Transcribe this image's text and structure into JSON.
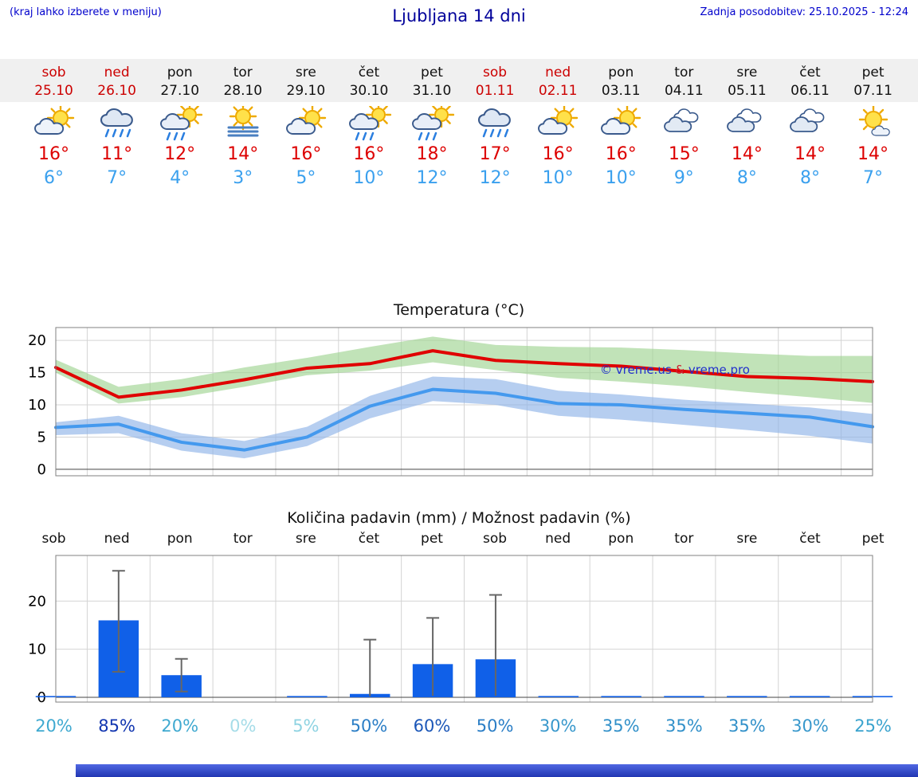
{
  "header": {
    "note_left": "(kraj lahko izberete v meniju)",
    "title": "Ljubljana 14 dni",
    "updated": "Zadnja posodobitev: 25.10.2025 - 12:24"
  },
  "colors": {
    "weekend_red": "#cc0000",
    "tmax_red": "#dd0000",
    "tmin_blue": "#3aa0ee",
    "link_blue": "#0000cc",
    "title_blue": "#00009a",
    "strip_bg": "#f0f0f0",
    "line_red": "#e00000",
    "line_blue": "#4499ee",
    "band_green": "#9fd492",
    "band_blue": "#8fb3e8",
    "bar_blue": "#1060e8",
    "footer_bar": "#3050d0"
  },
  "days": [
    {
      "name": "sob",
      "date": "25.10",
      "weekend": true,
      "icon": "sun-cloud-icon",
      "tmax": "16°",
      "tmin": "6°"
    },
    {
      "name": "ned",
      "date": "26.10",
      "weekend": true,
      "icon": "rain-icon",
      "tmax": "11°",
      "tmin": "7°"
    },
    {
      "name": "pon",
      "date": "27.10",
      "weekend": false,
      "icon": "sun-rain-icon",
      "tmax": "12°",
      "tmin": "4°"
    },
    {
      "name": "tor",
      "date": "28.10",
      "weekend": false,
      "icon": "fog-sun-icon",
      "tmax": "14°",
      "tmin": "3°"
    },
    {
      "name": "sre",
      "date": "29.10",
      "weekend": false,
      "icon": "sun-cloud-icon",
      "tmax": "16°",
      "tmin": "5°"
    },
    {
      "name": "čet",
      "date": "30.10",
      "weekend": false,
      "icon": "sun-rain-icon",
      "tmax": "16°",
      "tmin": "10°"
    },
    {
      "name": "pet",
      "date": "31.10",
      "weekend": false,
      "icon": "sun-rain-icon",
      "tmax": "18°",
      "tmin": "12°"
    },
    {
      "name": "sob",
      "date": "01.11",
      "weekend": true,
      "icon": "rain-icon",
      "tmax": "17°",
      "tmin": "12°"
    },
    {
      "name": "ned",
      "date": "02.11",
      "weekend": true,
      "icon": "sun-cloud-icon",
      "tmax": "16°",
      "tmin": "10°"
    },
    {
      "name": "pon",
      "date": "03.11",
      "weekend": false,
      "icon": "sun-cloud-icon",
      "tmax": "16°",
      "tmin": "10°"
    },
    {
      "name": "tor",
      "date": "04.11",
      "weekend": false,
      "icon": "cloudy-icon",
      "tmax": "15°",
      "tmin": "9°"
    },
    {
      "name": "sre",
      "date": "05.11",
      "weekend": false,
      "icon": "cloudy-icon",
      "tmax": "14°",
      "tmin": "8°"
    },
    {
      "name": "čet",
      "date": "06.11",
      "weekend": false,
      "icon": "cloudy-icon",
      "tmax": "14°",
      "tmin": "8°"
    },
    {
      "name": "pet",
      "date": "07.11",
      "weekend": false,
      "icon": "mostly-sunny-icon",
      "tmax": "14°",
      "tmin": "7°"
    }
  ],
  "chart_data": [
    {
      "type": "line",
      "title": "Temperatura (°C)",
      "watermark": {
        "pre": "© vreme.us ",
        "amp": "&",
        "post": " vreme.pro"
      },
      "x_labels": [
        "sob 25.10",
        "ned 26.10",
        "pon 27.10",
        "tor 28.10",
        "sre 29.10",
        "čet 30.10",
        "pet 31.10",
        "sob 01.11",
        "ned 02.11",
        "pon 03.11",
        "tor 04.11",
        "sre 05.11",
        "čet 06.11",
        "pet 07.11"
      ],
      "series": [
        {
          "name": "tmax",
          "values": [
            15.8,
            11.2,
            12.3,
            13.9,
            15.7,
            16.4,
            18.4,
            16.9,
            16.4,
            16.0,
            15.2,
            14.4,
            14.1,
            13.6
          ]
        },
        {
          "name": "tmax_upper",
          "values": [
            17.0,
            12.8,
            14.0,
            15.8,
            17.3,
            19.0,
            20.6,
            19.3,
            19.0,
            18.9,
            18.5,
            18.0,
            17.6,
            17.6
          ]
        },
        {
          "name": "tmax_lower",
          "values": [
            15.0,
            10.2,
            11.2,
            12.8,
            14.6,
            15.3,
            16.6,
            15.4,
            14.2,
            13.6,
            12.9,
            12.0,
            11.2,
            10.3
          ]
        },
        {
          "name": "tmin",
          "values": [
            6.5,
            7.0,
            4.2,
            3.0,
            5.0,
            9.8,
            12.4,
            11.8,
            10.2,
            10.0,
            9.3,
            8.7,
            8.1,
            6.6
          ]
        },
        {
          "name": "tmin_upper",
          "values": [
            7.3,
            8.3,
            5.6,
            4.4,
            6.6,
            11.4,
            14.4,
            14.0,
            12.2,
            11.6,
            10.8,
            10.2,
            9.6,
            8.6
          ]
        },
        {
          "name": "tmin_lower",
          "values": [
            5.3,
            5.6,
            2.9,
            1.7,
            3.6,
            7.9,
            10.6,
            10.0,
            8.3,
            7.7,
            6.9,
            6.1,
            5.2,
            4.0
          ]
        }
      ],
      "ylim": [
        -1,
        22
      ],
      "yticks": [
        0,
        5,
        10,
        15,
        20
      ],
      "grid": true,
      "legend": "none"
    },
    {
      "type": "bar",
      "title": "Količina padavin (mm) / Možnost padavin (%)",
      "categories": [
        "sob",
        "ned",
        "pon",
        "tor",
        "sre",
        "čet",
        "pet",
        "sob",
        "ned",
        "pon",
        "tor",
        "sre",
        "čet",
        "pet"
      ],
      "values": [
        0.15,
        16.0,
        4.6,
        0,
        0.05,
        0.7,
        6.9,
        7.9,
        0.1,
        0.15,
        0.1,
        0.15,
        0.1,
        0.05
      ],
      "whisker_low": [
        0,
        5.3,
        1.2,
        0,
        0,
        0.2,
        0.3,
        0.3,
        0,
        0,
        0,
        0,
        0,
        0
      ],
      "whisker_high": [
        0,
        26.3,
        8.0,
        0,
        0,
        12.0,
        16.5,
        21.3,
        0,
        0,
        0,
        0,
        0,
        0
      ],
      "percents": [
        "20%",
        "85%",
        "20%",
        "0%",
        "5%",
        "50%",
        "60%",
        "50%",
        "30%",
        "35%",
        "35%",
        "35%",
        "30%",
        "25%"
      ],
      "percent_colors": [
        "#3fa9d0",
        "#1236b0",
        "#3fa9d0",
        "#a5dce8",
        "#8fd3e2",
        "#2b7ec6",
        "#1c57b8",
        "#2b7ec6",
        "#3898cc",
        "#3190c9",
        "#3190c9",
        "#3190c9",
        "#3898cc",
        "#3aa3ce"
      ],
      "ylim": [
        -1,
        29.5
      ],
      "yticks": [
        0,
        10,
        20
      ],
      "grid": true,
      "legend": "none"
    }
  ]
}
